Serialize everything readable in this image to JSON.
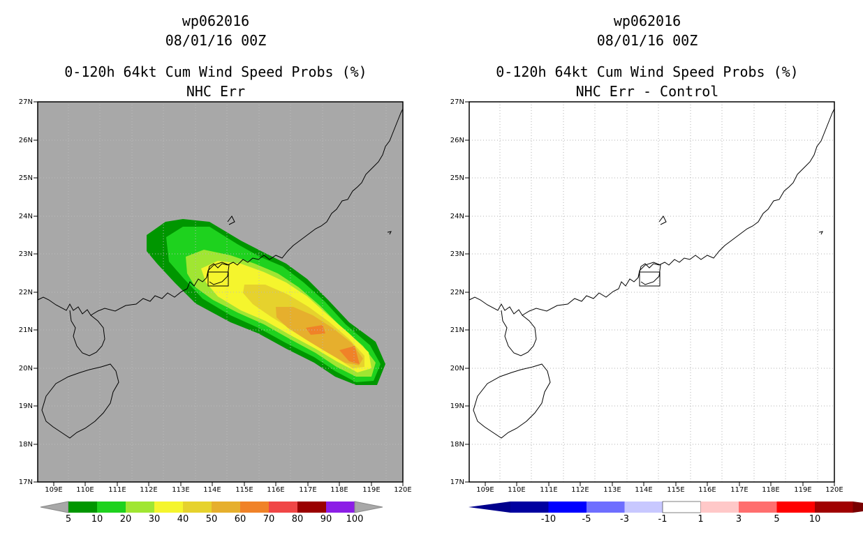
{
  "left": {
    "storm_id": "wp062016",
    "datetime": "08/01/16 00Z",
    "product": "0-120h 64kt Cum Wind Speed Probs (%)",
    "subtitle": "NHC Err",
    "background_color": "#a8a8a8",
    "colorbar": {
      "labels": [
        "5",
        "10",
        "20",
        "30",
        "40",
        "50",
        "60",
        "70",
        "80",
        "90",
        "100"
      ],
      "colors": [
        "#009600",
        "#1ed21e",
        "#a0e632",
        "#f5f52d",
        "#e6d22d",
        "#e6af2d",
        "#f08228",
        "#f04646",
        "#9a0000",
        "#8c1ee6"
      ],
      "extend_color": "#a8a8a8"
    }
  },
  "right": {
    "storm_id": "wp062016",
    "datetime": "08/01/16 00Z",
    "product": "0-120h 64kt Cum Wind Speed Probs (%)",
    "subtitle": "NHC Err - Control",
    "background_color": "#ffffff",
    "colorbar": {
      "labels": [
        "-10",
        "-5",
        "-3",
        "-1",
        "1",
        "3",
        "5",
        "10"
      ],
      "colors": [
        "#0000a0",
        "#0000ff",
        "#6e6eff",
        "#c8c8ff",
        "#ffffff",
        "#ffc8c8",
        "#ff6e6e",
        "#ff0000",
        "#a00000"
      ],
      "extend_low": "#00008c",
      "extend_high": "#780000"
    }
  },
  "map": {
    "lat_labels": [
      "17N",
      "18N",
      "19N",
      "20N",
      "21N",
      "22N",
      "23N",
      "24N",
      "25N",
      "26N",
      "27N"
    ],
    "lon_labels": [
      "109E",
      "110E",
      "111E",
      "112E",
      "113E",
      "114E",
      "115E",
      "116E",
      "117E",
      "118E",
      "119E",
      "120E"
    ]
  }
}
